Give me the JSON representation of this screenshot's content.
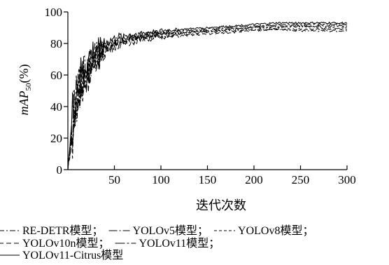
{
  "chart_data": {
    "type": "line",
    "xlabel": "迭代次数",
    "ylabel_main": "mAP",
    "ylabel_sub": "50",
    "ylabel_unit": "(%)",
    "xlim": [
      0,
      300
    ],
    "ylim": [
      0,
      100
    ],
    "xticks": [
      50,
      100,
      150,
      200,
      250,
      300
    ],
    "yticks": [
      0,
      20,
      40,
      60,
      80,
      100
    ],
    "grid": false,
    "legend_position": "bottom",
    "series": [
      {
        "name": "RE-DETR模型",
        "dash": "dashdot",
        "x": [
          0,
          5,
          10,
          15,
          20,
          25,
          30,
          40,
          50,
          60,
          75,
          100,
          125,
          150,
          175,
          200,
          225,
          250,
          275,
          300
        ],
        "y": [
          0,
          25,
          42,
          52,
          60,
          66,
          70,
          75,
          79,
          81,
          83,
          85,
          86,
          87,
          88,
          89,
          89,
          88,
          88,
          88
        ]
      },
      {
        "name": "YOLOv5模型",
        "dash": "longdashdot",
        "x": [
          0,
          5,
          10,
          15,
          20,
          25,
          30,
          40,
          50,
          60,
          75,
          100,
          125,
          150,
          175,
          200,
          225,
          250,
          275,
          300
        ],
        "y": [
          0,
          28,
          45,
          55,
          62,
          68,
          72,
          76,
          80,
          82,
          84,
          86,
          87,
          88,
          89,
          90,
          91,
          91,
          91,
          91
        ]
      },
      {
        "name": "YOLOv8模型",
        "dash": "shortdash",
        "x": [
          0,
          5,
          10,
          15,
          20,
          25,
          30,
          40,
          50,
          60,
          75,
          100,
          125,
          150,
          175,
          200,
          225,
          250,
          275,
          300
        ],
        "y": [
          0,
          30,
          47,
          57,
          64,
          69,
          73,
          77,
          80,
          82,
          84,
          86,
          87,
          88,
          89,
          90,
          90,
          91,
          90,
          90
        ]
      },
      {
        "name": "YOLOv10n模型",
        "dash": "dash",
        "x": [
          0,
          5,
          10,
          15,
          20,
          25,
          30,
          40,
          50,
          60,
          75,
          100,
          125,
          150,
          175,
          200,
          225,
          250,
          275,
          300
        ],
        "y": [
          0,
          22,
          40,
          50,
          58,
          64,
          69,
          74,
          78,
          80,
          82,
          84,
          85,
          86,
          87,
          88,
          89,
          89,
          89,
          89
        ]
      },
      {
        "name": "YOLOv11模型",
        "dash": "longdashdot2",
        "x": [
          0,
          5,
          10,
          15,
          20,
          25,
          30,
          40,
          50,
          60,
          75,
          100,
          125,
          150,
          175,
          200,
          225,
          250,
          275,
          300
        ],
        "y": [
          0,
          32,
          49,
          58,
          65,
          70,
          74,
          78,
          81,
          83,
          85,
          87,
          88,
          89,
          90,
          91,
          92,
          92,
          92,
          92
        ]
      },
      {
        "name": "YOLOv11-Citrus模型",
        "dash": "solid",
        "x": [
          0,
          5,
          10,
          15,
          20,
          25,
          30,
          40,
          50,
          60,
          75,
          100,
          125,
          150,
          175,
          200,
          225,
          250,
          275,
          300
        ],
        "y": [
          0,
          35,
          52,
          60,
          67,
          72,
          76,
          80,
          83,
          85,
          86,
          88,
          89,
          90,
          91,
          92,
          93,
          93,
          93,
          93
        ]
      }
    ],
    "legend_separator": "；",
    "colors": {
      "line": "#000000",
      "background": "#ffffff"
    }
  }
}
